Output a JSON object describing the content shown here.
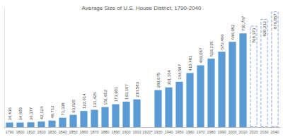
{
  "chart_data": {
    "type": "bar",
    "title": "Average Size of U.S. House District, 1790-2040",
    "categories": [
      "1790",
      "1800",
      "1810",
      "1820",
      "1830",
      "1840",
      "1850",
      "1860",
      "1870",
      "1880",
      "1890",
      "1900",
      "1910",
      "1920*",
      "1930",
      "1940",
      "1950",
      "1960",
      "1970",
      "1980",
      "1990",
      "2000",
      "2010",
      "2020",
      "2030",
      "2040"
    ],
    "series": [
      {
        "color": "#5b9bd5",
        "line_style": "solid",
        "values": [
          34436,
          34609,
          36377,
          42124,
          49712,
          71338,
          93020,
          122614,
          131425,
          151912,
          173901,
          193167,
          210583,
          null,
          280675,
          301164,
          344587,
          410481,
          469087,
          519235,
          572466,
          646952,
          710767,
          null,
          null,
          null
        ],
        "value_labels": [
          "34,436",
          "34,609",
          "36,377",
          "42,124",
          "49,712",
          "71,338",
          "93,020",
          "122,614",
          "131,425",
          "151,912",
          "173,901",
          "193,167",
          "210,583",
          null,
          "280,675",
          "301,164",
          "344,587",
          "410,481",
          "469,087",
          "519,235",
          "572,466",
          "646,952",
          "710,767",
          null,
          null,
          null
        ]
      },
      {
        "color": "#8faadc",
        "line_style": "dashed",
        "values": [
          null,
          null,
          null,
          null,
          null,
          null,
          null,
          null,
          null,
          null,
          null,
          null,
          null,
          null,
          null,
          null,
          null,
          null,
          null,
          null,
          null,
          null,
          null,
          768373,
          820212,
          876857
        ],
        "value_labels": [
          null,
          null,
          null,
          null,
          null,
          null,
          null,
          null,
          null,
          null,
          null,
          null,
          null,
          null,
          null,
          null,
          null,
          null,
          null,
          null,
          null,
          null,
          null,
          "768,373",
          "820,212",
          "876,857"
        ]
      }
    ],
    "ylim": [
      0,
      900000
    ],
    "grid": false,
    "data_labels": true,
    "tick_labels": "x"
  }
}
